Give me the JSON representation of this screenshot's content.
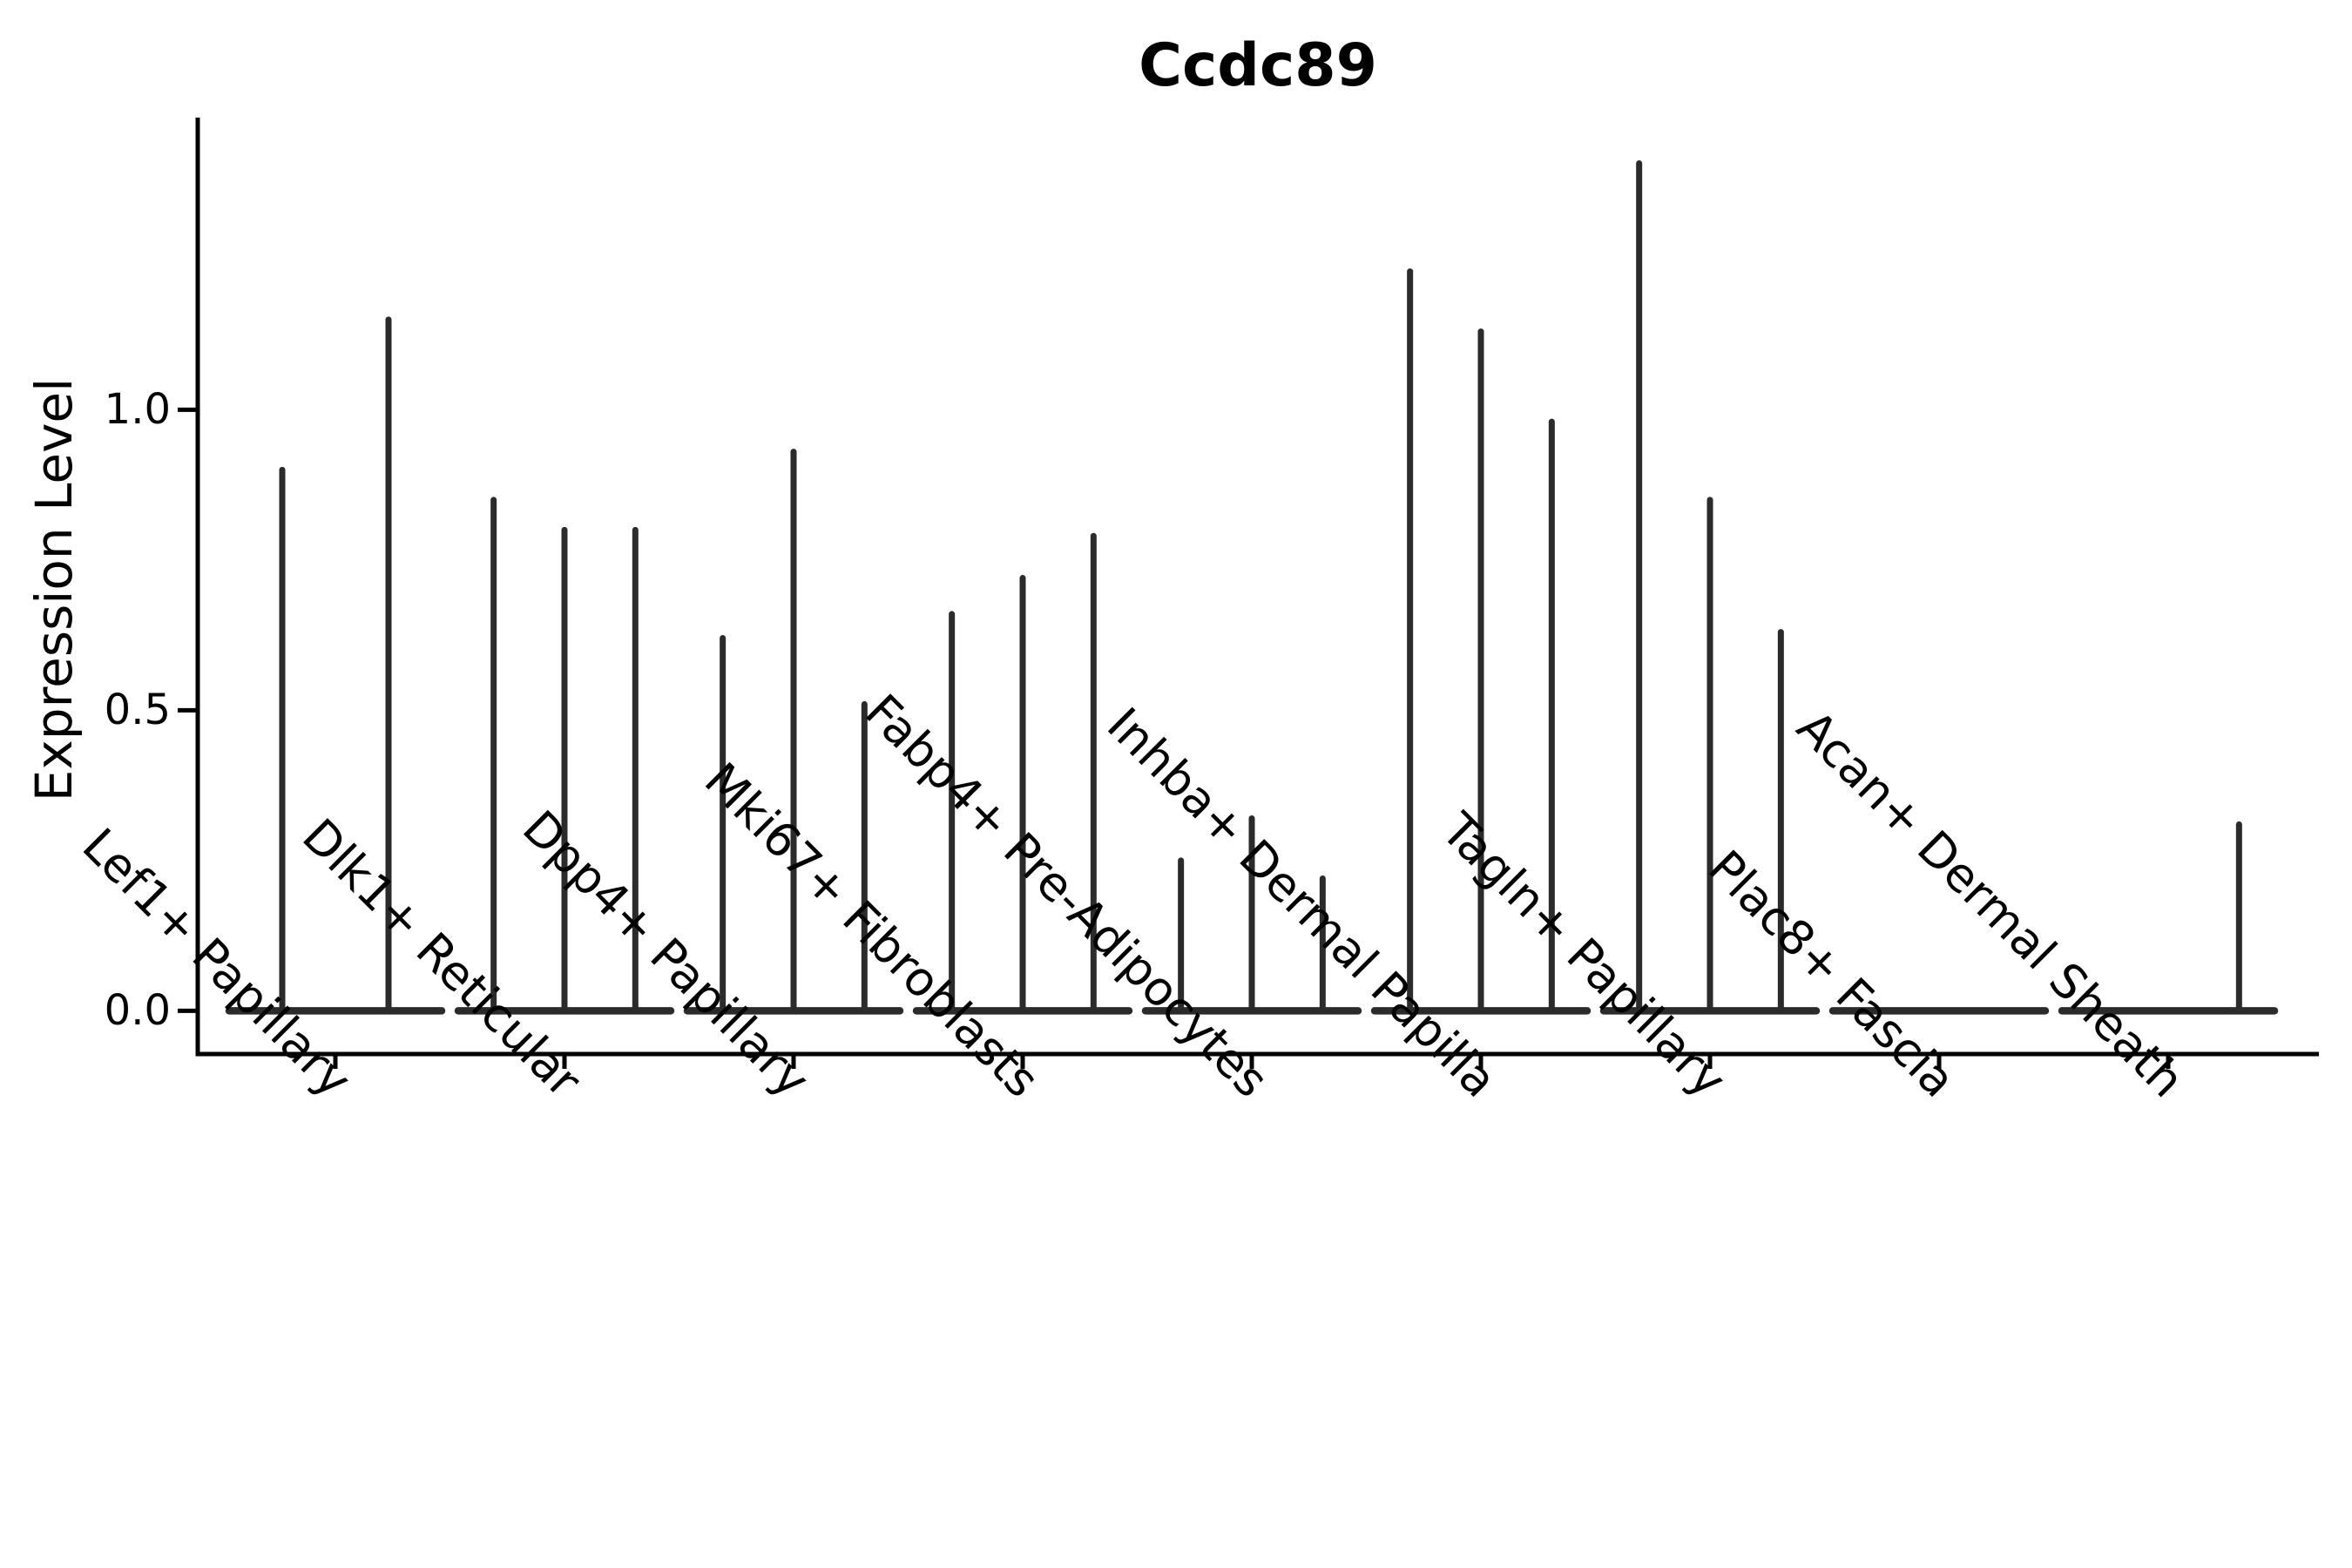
{
  "figure": {
    "background": "#ffffff",
    "text_color": "#000000"
  },
  "chart_data": {
    "type": "violin",
    "title": "Ccdc89",
    "xlabel": "",
    "ylabel": "Expression Level",
    "yticks": [
      0.0,
      0.5,
      1.0
    ],
    "ytick_labels": [
      "0.0",
      "0.5",
      "1.0"
    ],
    "ylim": [
      -0.072,
      1.486
    ],
    "grid": false,
    "legend": "none",
    "line_color": "#2b2b2b",
    "axis_color": "#000000",
    "categories": [
      "Lef1+ Papillary",
      "Dlk1+ Reticular",
      "Dpp4+ Papillary",
      "Mki67+ Fibroblasts",
      "Fabp4+ Pre-Adipocytes",
      "Inhba+ Dermal Papilla",
      "Tagln+ Papillary",
      "Plac8+ Fascia",
      "Acan+ Dermal Sheath"
    ],
    "series": [
      {
        "category": "Lef1+ Papillary",
        "violin_peaks": [
          0.9,
          1.15
        ]
      },
      {
        "category": "Dlk1+ Reticular",
        "violin_peaks": [
          0.85,
          0.8,
          0.8
        ]
      },
      {
        "category": "Dpp4+ Papillary",
        "violin_peaks": [
          0.62,
          0.93,
          0.51
        ]
      },
      {
        "category": "Mki67+ Fibroblasts",
        "violin_peaks": [
          0.66,
          0.72,
          0.79
        ]
      },
      {
        "category": "Fabp4+ Pre-Adipocytes",
        "violin_peaks": [
          0.25,
          0.32,
          0.22
        ]
      },
      {
        "category": "Inhba+ Dermal Papilla",
        "violin_peaks": [
          1.23,
          1.13,
          0.98
        ]
      },
      {
        "category": "Tagln+ Papillary",
        "violin_peaks": [
          1.41,
          0.85,
          0.63
        ]
      },
      {
        "category": "Plac8+ Fascia",
        "violin_peaks": [
          0.0,
          0.0,
          0.0
        ]
      },
      {
        "category": "Acan+ Dermal Sheath",
        "violin_peaks": [
          0.0,
          0.0,
          0.31
        ]
      }
    ]
  }
}
